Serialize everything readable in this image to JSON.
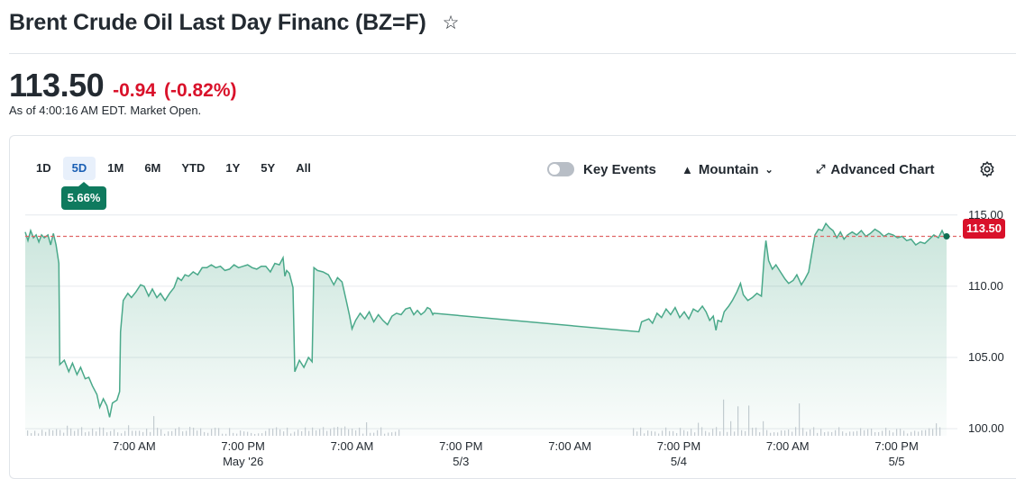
{
  "header": {
    "title": "Brent Crude Oil Last Day Financ (BZ=F)",
    "star_icon": "star-outline-icon"
  },
  "quote": {
    "price": "113.50",
    "change": "-0.94",
    "change_percent": "(-0.82%)",
    "as_of": "As of 4:00:16 AM EDT. Market Open.",
    "change_color": "#d9112a"
  },
  "range_tabs": [
    {
      "label": "1D",
      "active": false
    },
    {
      "label": "5D",
      "active": true
    },
    {
      "label": "1M",
      "active": false
    },
    {
      "label": "6M",
      "active": false
    },
    {
      "label": "YTD",
      "active": false
    },
    {
      "label": "1Y",
      "active": false
    },
    {
      "label": "5Y",
      "active": false
    },
    {
      "label": "All",
      "active": false
    }
  ],
  "range_change_badge": "5.66%",
  "toolbar": {
    "key_events_label": "Key Events",
    "key_events_on": false,
    "chart_type_label": "Mountain",
    "advanced_chart_label": "Advanced Chart",
    "settings_icon": "gear-icon"
  },
  "chart_data": {
    "type": "area",
    "title": "",
    "xlabel": "",
    "ylabel": "",
    "ylim": [
      99.5,
      116.5
    ],
    "y_ticks": [
      "115.00",
      "110.00",
      "105.00",
      "100.00"
    ],
    "y_tick_values": [
      115,
      110,
      105,
      100
    ],
    "x_ticks": [
      "7:00 AM",
      "7:00 PM",
      "7:00 AM",
      "7:00 PM",
      "7:00 AM",
      "7:00 PM",
      "7:00 AM",
      "7:00 PM"
    ],
    "x_tick_idx": [
      12,
      24,
      36,
      48,
      60,
      72,
      84,
      96
    ],
    "date_labels": [
      "May '26",
      "5/3",
      "5/4",
      "5/5"
    ],
    "date_label_idx": [
      24,
      48,
      72,
      96
    ],
    "x_range_idx": [
      0,
      101.5
    ],
    "current_price": 113.5,
    "current_price_label": "113.50",
    "line_color": "#4aa98a",
    "fill_color": "#0f8a5f",
    "reference_line_color": "#e06666",
    "series": [
      {
        "points": [
          [
            0.0,
            113.8
          ],
          [
            0.3,
            113.2
          ],
          [
            0.6,
            113.9
          ],
          [
            0.9,
            113.4
          ],
          [
            1.2,
            113.6
          ],
          [
            1.5,
            113.1
          ],
          [
            1.8,
            113.6
          ],
          [
            2.1,
            113.4
          ],
          [
            2.5,
            113.6
          ],
          [
            2.8,
            112.9
          ],
          [
            3.1,
            113.7
          ],
          [
            3.4,
            112.9
          ],
          [
            3.7,
            111.6
          ],
          [
            3.8,
            104.5
          ],
          [
            4.3,
            104.8
          ],
          [
            4.8,
            104.0
          ],
          [
            5.2,
            104.6
          ],
          [
            5.7,
            103.8
          ],
          [
            6.1,
            104.3
          ],
          [
            6.6,
            103.5
          ],
          [
            7.0,
            103.6
          ],
          [
            7.4,
            103.0
          ],
          [
            7.9,
            102.4
          ],
          [
            8.2,
            101.5
          ],
          [
            8.6,
            102.1
          ],
          [
            9.0,
            101.6
          ],
          [
            9.3,
            100.8
          ],
          [
            9.6,
            101.8
          ],
          [
            10.1,
            102.0
          ],
          [
            10.4,
            102.6
          ],
          [
            10.5,
            106.8
          ],
          [
            10.8,
            109.0
          ],
          [
            11.3,
            109.5
          ],
          [
            11.7,
            109.2
          ],
          [
            12.2,
            109.6
          ],
          [
            12.7,
            110.1
          ],
          [
            13.1,
            110.0
          ],
          [
            13.6,
            109.3
          ],
          [
            14.0,
            109.8
          ],
          [
            14.5,
            109.2
          ],
          [
            14.9,
            109.5
          ],
          [
            15.4,
            109.0
          ],
          [
            15.9,
            109.5
          ],
          [
            16.4,
            109.9
          ],
          [
            16.8,
            110.6
          ],
          [
            17.2,
            110.4
          ],
          [
            17.6,
            110.8
          ],
          [
            18.0,
            110.7
          ],
          [
            18.5,
            111.0
          ],
          [
            19.0,
            110.8
          ],
          [
            19.5,
            111.3
          ],
          [
            20.0,
            111.3
          ],
          [
            20.5,
            111.5
          ],
          [
            21.0,
            111.3
          ],
          [
            21.5,
            111.4
          ],
          [
            22.0,
            111.1
          ],
          [
            22.5,
            111.2
          ],
          [
            23.0,
            111.5
          ],
          [
            23.5,
            111.3
          ],
          [
            24.0,
            111.4
          ],
          [
            24.5,
            111.5
          ],
          [
            25.0,
            111.3
          ],
          [
            25.5,
            111.2
          ],
          [
            26.0,
            111.4
          ],
          [
            26.5,
            111.4
          ],
          [
            27.0,
            111.0
          ],
          [
            27.5,
            111.6
          ],
          [
            28.0,
            111.5
          ],
          [
            28.4,
            112.0
          ],
          [
            28.6,
            110.7
          ],
          [
            28.8,
            111.1
          ],
          [
            29.1,
            110.9
          ],
          [
            29.5,
            109.9
          ],
          [
            29.7,
            104.0
          ],
          [
            30.2,
            104.8
          ],
          [
            30.7,
            104.3
          ],
          [
            31.2,
            105.0
          ],
          [
            31.6,
            104.7
          ],
          [
            31.8,
            111.3
          ],
          [
            32.2,
            111.1
          ],
          [
            32.8,
            111.0
          ],
          [
            33.4,
            110.8
          ],
          [
            34.0,
            110.1
          ],
          [
            34.4,
            110.6
          ],
          [
            34.9,
            110.3
          ],
          [
            35.4,
            108.9
          ],
          [
            35.7,
            108.0
          ],
          [
            36.0,
            107.0
          ],
          [
            36.4,
            107.6
          ],
          [
            36.9,
            108.1
          ],
          [
            37.4,
            107.7
          ],
          [
            37.9,
            108.2
          ],
          [
            38.4,
            107.5
          ],
          [
            38.9,
            108.0
          ],
          [
            39.4,
            107.6
          ],
          [
            39.9,
            107.3
          ],
          [
            40.4,
            107.9
          ],
          [
            40.9,
            108.1
          ],
          [
            41.4,
            108.0
          ],
          [
            41.9,
            108.4
          ],
          [
            42.4,
            108.5
          ],
          [
            42.8,
            108.0
          ],
          [
            43.2,
            108.3
          ],
          [
            43.6,
            108.0
          ],
          [
            44.0,
            108.2
          ],
          [
            44.3,
            108.5
          ],
          [
            44.6,
            108.4
          ],
          [
            44.9,
            108.0
          ],
          [
            45.0,
            108.1
          ],
          [
            67.6,
            106.8
          ],
          [
            67.9,
            107.5
          ],
          [
            68.3,
            107.6
          ],
          [
            68.7,
            107.7
          ],
          [
            69.1,
            107.4
          ],
          [
            69.6,
            108.1
          ],
          [
            70.1,
            107.8
          ],
          [
            70.6,
            108.4
          ],
          [
            71.1,
            108.0
          ],
          [
            71.6,
            108.5
          ],
          [
            72.1,
            107.8
          ],
          [
            72.6,
            108.2
          ],
          [
            73.1,
            107.7
          ],
          [
            73.6,
            108.4
          ],
          [
            74.1,
            108.2
          ],
          [
            74.6,
            108.6
          ],
          [
            75.0,
            108.2
          ],
          [
            75.4,
            107.6
          ],
          [
            75.8,
            107.9
          ],
          [
            76.1,
            106.9
          ],
          [
            76.3,
            107.6
          ],
          [
            76.7,
            107.5
          ],
          [
            77.0,
            108.2
          ],
          [
            77.5,
            108.6
          ],
          [
            77.9,
            109.0
          ],
          [
            78.4,
            109.6
          ],
          [
            78.8,
            110.2
          ],
          [
            79.1,
            109.4
          ],
          [
            79.6,
            109.0
          ],
          [
            80.1,
            109.2
          ],
          [
            80.6,
            109.5
          ],
          [
            81.1,
            109.3
          ],
          [
            81.4,
            112.0
          ],
          [
            81.6,
            113.2
          ],
          [
            81.9,
            111.8
          ],
          [
            82.3,
            111.2
          ],
          [
            82.7,
            111.5
          ],
          [
            83.2,
            111.0
          ],
          [
            83.7,
            110.5
          ],
          [
            84.1,
            110.2
          ],
          [
            84.6,
            110.4
          ],
          [
            85.0,
            110.8
          ],
          [
            85.5,
            110.1
          ],
          [
            85.9,
            110.5
          ],
          [
            86.3,
            111.0
          ],
          [
            86.7,
            112.5
          ],
          [
            87.0,
            113.6
          ],
          [
            87.4,
            114.0
          ],
          [
            87.8,
            113.9
          ],
          [
            88.2,
            114.4
          ],
          [
            88.6,
            114.1
          ],
          [
            89.0,
            113.9
          ],
          [
            89.4,
            113.4
          ],
          [
            89.8,
            113.8
          ],
          [
            90.2,
            113.3
          ],
          [
            90.6,
            113.6
          ],
          [
            91.1,
            113.8
          ],
          [
            91.6,
            113.6
          ],
          [
            92.1,
            113.9
          ],
          [
            92.6,
            113.5
          ],
          [
            93.1,
            113.7
          ],
          [
            93.6,
            114.0
          ],
          [
            94.1,
            113.8
          ],
          [
            94.6,
            113.5
          ],
          [
            95.1,
            113.7
          ],
          [
            95.6,
            113.6
          ],
          [
            96.1,
            113.4
          ],
          [
            96.6,
            113.5
          ],
          [
            97.1,
            113.2
          ],
          [
            97.6,
            113.3
          ],
          [
            98.1,
            112.9
          ],
          [
            98.6,
            113.1
          ],
          [
            99.1,
            113.0
          ],
          [
            99.6,
            113.3
          ],
          [
            100.1,
            113.6
          ],
          [
            100.6,
            113.4
          ],
          [
            101.0,
            113.9
          ],
          [
            101.3,
            113.5
          ],
          [
            101.5,
            113.5
          ]
        ]
      }
    ]
  }
}
